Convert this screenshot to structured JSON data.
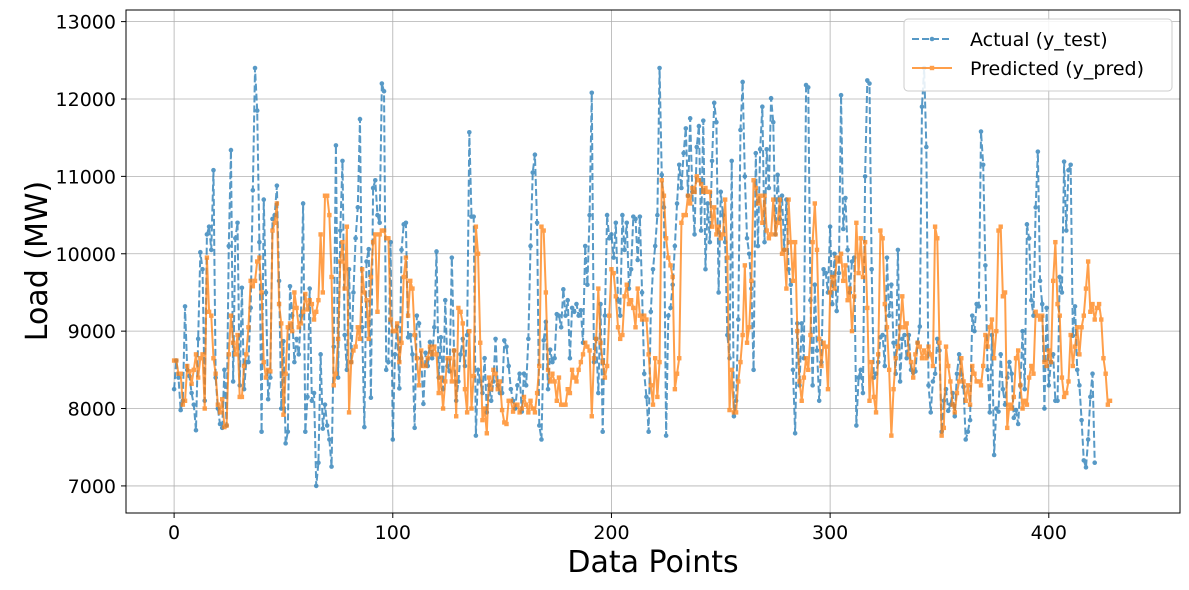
{
  "chart_data": {
    "type": "line",
    "title": "",
    "xlabel": "Data Points",
    "ylabel": "Load (MW)",
    "xlim": [
      -22,
      460
    ],
    "ylim": [
      6650,
      13150
    ],
    "xticks": [
      0,
      100,
      200,
      300,
      400
    ],
    "yticks": [
      7000,
      8000,
      9000,
      10000,
      11000,
      12000,
      13000
    ],
    "grid": true,
    "legend_position": "top-right",
    "series": [
      {
        "name": "Actual (y_test)",
        "color": "#1f77b4",
        "linestyle": "dashed",
        "marker": "circle",
        "values": [
          8250,
          8620,
          8400,
          7980,
          8100,
          9320,
          8500,
          8420,
          8200,
          8050,
          7720,
          8900,
          10020,
          9800,
          8100,
          10250,
          10350,
          10050,
          11080,
          8400,
          8000,
          7800,
          7750,
          8500,
          7780,
          10100,
          11340,
          8350,
          10200,
          10400,
          8300,
          9560,
          8250,
          8600,
          8600,
          9300,
          10820,
          12400,
          11850,
          10150,
          7700,
          10700,
          9500,
          8120,
          8400,
          10450,
          10500,
          10880,
          9650,
          8000,
          8870,
          7550,
          7700,
          9580,
          9200,
          8600,
          8900,
          8700,
          9200,
          10650,
          7700,
          8150,
          9550,
          8100,
          8200,
          7000,
          7300,
          8700,
          7740,
          8050,
          7780,
          7600,
          7250,
          8800,
          11400,
          8400,
          10300,
          11200,
          8950,
          8500,
          9800,
          8600,
          9500,
          10200,
          10600,
          11740,
          9050,
          7760,
          9900,
          10060,
          8140,
          10850,
          10950,
          10500,
          10400,
          12200,
          12100,
          8500,
          8600,
          10150,
          7600,
          8700,
          9060,
          8260,
          10050,
          10380,
          10400,
          8920,
          8950,
          8700,
          7750,
          9200,
          9100,
          8650,
          8060,
          8720,
          8550,
          8860,
          8650,
          9050,
          10030,
          8400,
          8920,
          8250,
          9400,
          8550,
          8480,
          9950,
          8750,
          8100,
          8350,
          8700,
          8900,
          8550,
          8950,
          11570,
          10480,
          10480,
          7650,
          8500,
          8350,
          8200,
          8650,
          7950,
          8300,
          8100,
          8350,
          8900,
          8300,
          8200,
          8200,
          8880,
          8800,
          8550,
          8250,
          8100,
          8000,
          8300,
          8450,
          7960,
          8450,
          8300,
          8900,
          10100,
          11050,
          11280,
          10400,
          7780,
          7600,
          8880,
          9120,
          8250,
          8760,
          8600,
          8650,
          9220,
          9200,
          9050,
          9540,
          9200,
          9400,
          8650,
          9300,
          9250,
          9350,
          9200,
          9270,
          8850,
          10100,
          9600,
          10500,
          12080,
          8600,
          8900,
          8200,
          9350,
          7700,
          9200,
          10500,
          10200,
          10250,
          9950,
          10400,
          9400,
          9200,
          10500,
          10050,
          10400,
          9550,
          9800,
          10480,
          10450,
          9920,
          10480,
          9500,
          8450,
          8150,
          7700,
          9250,
          9800,
          10100,
          10500,
          12400,
          11020,
          10600,
          7650,
          9200,
          9300,
          9600,
          10100,
          10650,
          11150,
          10850,
          11300,
          11620,
          10750,
          11750,
          10800,
          10250,
          11380,
          11650,
          10300,
          11720,
          9800,
          10650,
          10150,
          11200,
          11950,
          11700,
          9500,
          10800,
          10500,
          10150,
          8950,
          8650,
          11200,
          7900,
          8100,
          9150,
          11600,
          12220,
          11000,
          10200,
          10000,
          9550,
          8500,
          11300,
          10100,
          11350,
          11900,
          10150,
          11350,
          10850,
          12010,
          11700,
          10250,
          11020,
          10450,
          10750,
          10050,
          10700,
          9800,
          9600,
          8500,
          7680,
          9100,
          8300,
          9100,
          8650,
          12180,
          12150,
          9400,
          8300,
          9600,
          8750,
          8100,
          8600,
          9800,
          9750,
          9500,
          10350,
          9350,
          10000,
          9260,
          9750,
          12050,
          10320,
          10720,
          10050,
          9500,
          9900,
          9950,
          7780,
          8400,
          8500,
          8200,
          11000,
          12240,
          12200,
          9800,
          8400,
          8450,
          8600,
          8920,
          8950,
          8550,
          9950,
          9200,
          9600,
          8850,
          8450,
          10050,
          8350,
          8900,
          8950,
          8650,
          8950,
          8500,
          8460,
          8480,
          8850,
          9060,
          11900,
          12400,
          11380,
          8300,
          7950,
          8350,
          8450,
          8900,
          8750,
          7700,
          8100,
          8250,
          7970,
          8050,
          8200,
          7900,
          8450,
          8700,
          8440,
          8280,
          7600,
          7700,
          7850,
          9200,
          9000,
          9350,
          9320,
          11580,
          11150,
          9850,
          8500,
          7950,
          8950,
          7400,
          8000,
          7960,
          8700,
          8250,
          8050,
          8400,
          8600,
          8450,
          7880,
          7980,
          7800,
          8300,
          9000,
          8250,
          10380,
          10200,
          9400,
          9200,
          10600,
          11320,
          9650,
          9350,
          8000,
          9300,
          8300,
          8600,
          8700,
          8100,
          8100,
          9700,
          9500,
          11190,
          10300,
          11080,
          11150,
          8940,
          9320,
          8500,
          8300,
          7850,
          7330,
          7240,
          7600,
          8150,
          8450,
          7300
        ]
      },
      {
        "name": "Predicted (y_pred)",
        "color": "#ff7f0e",
        "linestyle": "solid",
        "marker": "square",
        "values": [
          8620,
          8620,
          8450,
          8450,
          8050,
          8100,
          8550,
          8480,
          8320,
          8500,
          8700,
          8400,
          8650,
          8700,
          8000,
          9950,
          9250,
          9200,
          8650,
          8450,
          8050,
          7950,
          8120,
          7760,
          7780,
          8700,
          9200,
          8850,
          8700,
          8950,
          8150,
          8150,
          8550,
          8700,
          9050,
          9650,
          9580,
          9650,
          9900,
          9950,
          9500,
          8600,
          8400,
          8500,
          8480,
          10300,
          10400,
          10650,
          9350,
          9100,
          7920,
          8450,
          9050,
          9100,
          9000,
          9500,
          9300,
          9050,
          9100,
          9250,
          9480,
          9280,
          9400,
          9350,
          9150,
          9250,
          9400,
          10250,
          9500,
          10750,
          10750,
          10500,
          9700,
          8300,
          8450,
          8900,
          9900,
          10150,
          9550,
          10350,
          7950,
          8600,
          8750,
          8800,
          9050,
          8900,
          9800,
          9500,
          9400,
          8900,
          9700,
          10150,
          10250,
          9250,
          10250,
          10300,
          10300,
          10200,
          10200,
          9150,
          9000,
          9000,
          9100,
          8600,
          8850,
          9700,
          9950,
          9200,
          9650,
          9550,
          8950,
          8650,
          8300,
          8750,
          8550,
          8550,
          8650,
          8800,
          8700,
          8800,
          8700,
          8200,
          8400,
          8000,
          8350,
          8650,
          8650,
          8350,
          8750,
          7900,
          9300,
          9250,
          9100,
          8250,
          7950,
          9000,
          8000,
          8420,
          10350,
          10000,
          8850,
          7850,
          8000,
          7680,
          8400,
          8250,
          8500,
          8450,
          8250,
          8350,
          7980,
          7820,
          7800,
          8100,
          8100,
          7960,
          8050,
          8050,
          7950,
          8000,
          8150,
          8050,
          7950,
          8100,
          8000,
          7950,
          8200,
          8550,
          10350,
          10300,
          9500,
          8500,
          8350,
          8450,
          8350,
          8100,
          8400,
          8050,
          8050,
          8050,
          8250,
          8200,
          8500,
          8400,
          8350,
          8500,
          8600,
          8700,
          8850,
          8800,
          8750,
          7900,
          8650,
          8900,
          9550,
          8850,
          8600,
          8400,
          8550,
          9200,
          9800,
          9750,
          9450,
          9050,
          8900,
          8950,
          9450,
          9600,
          9350,
          9400,
          9300,
          9050,
          9550,
          9200,
          9150,
          9200,
          9150,
          8700,
          8300,
          8050,
          8650,
          8150,
          8600,
          10950,
          10750,
          10200,
          9950,
          9850,
          9700,
          8250,
          8450,
          8650,
          10400,
          10500,
          10500,
          10750,
          10650,
          10850,
          10800,
          11000,
          10950,
          10900,
          10800,
          10850,
          10800,
          10800,
          10350,
          10600,
          10250,
          10350,
          10200,
          10250,
          10700,
          9950,
          7980,
          8500,
          7950,
          7950,
          8350,
          8600,
          8950,
          9850,
          8850,
          9050,
          9650,
          10950,
          10850,
          10650,
          10750,
          10400,
          10750,
          10300,
          10200,
          10250,
          10700,
          10250,
          10400,
          10700,
          10000,
          10050,
          9550,
          10700,
          10150,
          9650,
          10150,
          9000,
          8350,
          8100,
          8400,
          8650,
          8500,
          8950,
          10150,
          10650,
          10050,
          8900,
          8550,
          8850,
          8800,
          8250,
          9500,
          9700,
          9550,
          9950,
          9900,
          10000,
          9650,
          9850,
          9400,
          9550,
          9000,
          9450,
          10400,
          9750,
          10200,
          9700,
          10150,
          9300,
          8100,
          8600,
          8150,
          7950,
          8700,
          10300,
          10200,
          9350,
          9050,
          8500,
          7650,
          8250,
          8650,
          8800,
          9050,
          9450,
          9050,
          9100,
          8700,
          8600,
          8400,
          8700,
          8850,
          8800,
          8650,
          8750,
          8650,
          8800,
          8700,
          8550,
          10350,
          10200,
          8850,
          7650,
          7750,
          8800,
          8550,
          8350,
          8050,
          7950,
          8200,
          8350,
          8650,
          8350,
          8100,
          8300,
          8050,
          8550,
          8450,
          8350,
          8350,
          8300,
          8550,
          8950,
          8800,
          9050,
          9150,
          8650,
          9000,
          10300,
          10350,
          9450,
          9500,
          7750,
          8050,
          8000,
          8150,
          8650,
          8750,
          8300,
          8000,
          8100,
          8050,
          8400,
          8550,
          8450,
          9250,
          9200,
          9150,
          9200,
          8600,
          8550,
          8750,
          8600,
          9650,
          10150,
          9350,
          9200,
          8400,
          8150,
          8200,
          8350,
          8950,
          8550,
          8800,
          9050,
          8700,
          9050,
          9200,
          9550,
          9900,
          9250,
          9350,
          9150,
          9300,
          9350,
          9150,
          8650,
          8450,
          8050,
          8100
        ]
      }
    ]
  }
}
